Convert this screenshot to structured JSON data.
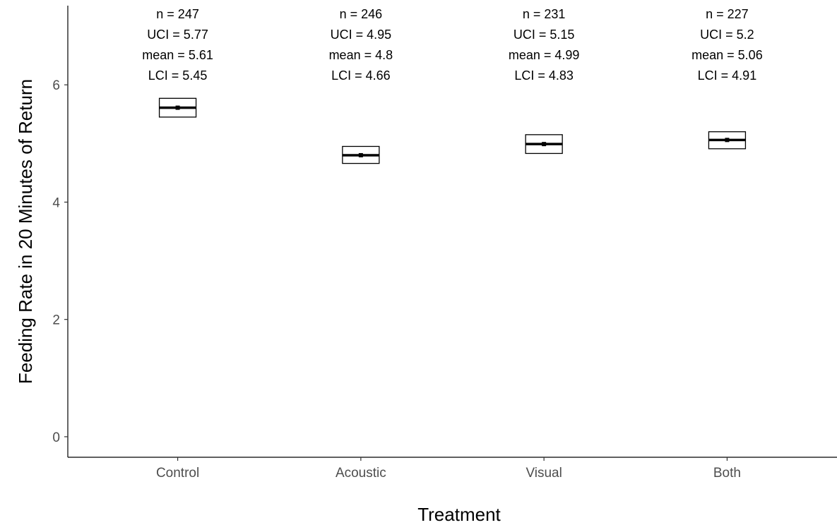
{
  "chart_data": {
    "type": "box",
    "xlabel": "Treatment",
    "ylabel": "Feeding Rate in 20 Minutes of Return",
    "ylim": [
      -0.35,
      7.35
    ],
    "yticks": [
      0,
      2,
      4,
      6
    ],
    "grid": false,
    "categories": [
      "Control",
      "Acoustic",
      "Visual",
      "Both"
    ],
    "groups": [
      {
        "category": "Control",
        "n": 247,
        "uci": 5.77,
        "mean": 5.61,
        "lci": 5.45
      },
      {
        "category": "Acoustic",
        "n": 246,
        "uci": 4.95,
        "mean": 4.8,
        "lci": 4.66
      },
      {
        "category": "Visual",
        "n": 231,
        "uci": 5.15,
        "mean": 4.99,
        "lci": 4.83
      },
      {
        "category": "Both",
        "n": 227,
        "uci": 5.2,
        "mean": 5.06,
        "lci": 4.91
      }
    ],
    "annotations": [
      [
        "n = 247",
        "UCI = 5.77",
        "mean = 5.61",
        "LCI = 5.45"
      ],
      [
        "n = 246",
        "UCI = 4.95",
        "mean = 4.8",
        "LCI = 4.66"
      ],
      [
        "n = 231",
        "UCI = 5.15",
        "mean = 4.99",
        "LCI = 4.83"
      ],
      [
        "n = 227",
        "UCI = 5.2",
        "mean = 5.06",
        "LCI = 4.91"
      ]
    ]
  }
}
